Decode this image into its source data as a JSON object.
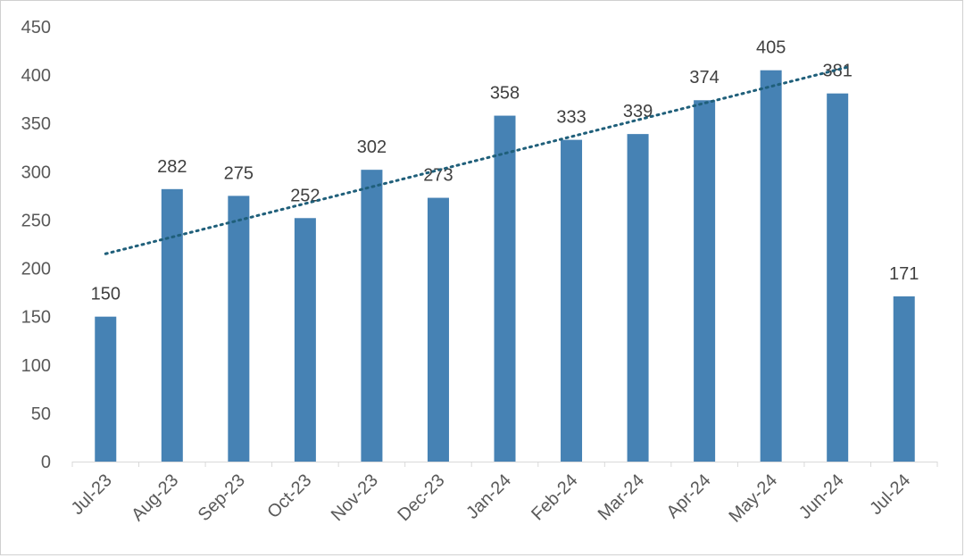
{
  "chart_data": {
    "type": "bar",
    "categories": [
      "Jul-23",
      "Aug-23",
      "Sep-23",
      "Oct-23",
      "Nov-23",
      "Dec-23",
      "Jan-24",
      "Feb-24",
      "Mar-24",
      "Apr-24",
      "May-24",
      "Jun-24",
      "Jul-24"
    ],
    "values": [
      150,
      282,
      275,
      252,
      302,
      273,
      358,
      333,
      339,
      374,
      405,
      381,
      171
    ],
    "ylim": [
      0,
      450
    ],
    "yticks": [
      0,
      50,
      100,
      150,
      200,
      250,
      300,
      350,
      400,
      450
    ],
    "trendline": {
      "type": "linear",
      "style": "dotted",
      "range": "first-to-last-full-month"
    },
    "data_labels": true,
    "grid": false,
    "legend": "none",
    "bar_color": "#4682b4",
    "trend_color": "#1f5f7a"
  }
}
